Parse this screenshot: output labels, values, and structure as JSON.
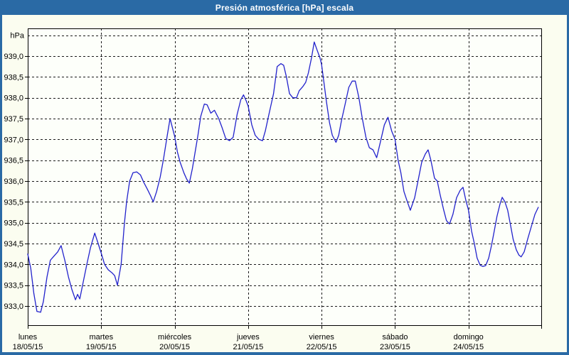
{
  "window": {
    "title": "Presión atmosférica [hPa] escala"
  },
  "colors": {
    "frame": "#2a6aa5",
    "title_text": "#ffffff",
    "content_bg": "#fbfdf0",
    "plot_bg": "#fdfffa",
    "grid": "#1a1a1a",
    "axis": "#000000",
    "label_text": "#000000",
    "line": "#2222cc"
  },
  "chart_data": {
    "type": "line",
    "title": "Presión atmosférica [hPa] escala",
    "y_axis_unit_label": "hPa",
    "ylim": [
      932.53,
      939.66
    ],
    "x_domain_hours": [
      0,
      168
    ],
    "grid": "dashed",
    "legend_visible": false,
    "y_ticks": [
      {
        "v": 939.0,
        "label": "939,0"
      },
      {
        "v": 938.5,
        "label": "938,5"
      },
      {
        "v": 938.0,
        "label": "938,0"
      },
      {
        "v": 937.5,
        "label": "937,5"
      },
      {
        "v": 937.0,
        "label": "937,0"
      },
      {
        "v": 936.5,
        "label": "936,5"
      },
      {
        "v": 936.0,
        "label": "936,0"
      },
      {
        "v": 935.5,
        "label": "935,5"
      },
      {
        "v": 935.0,
        "label": "935,0"
      },
      {
        "v": 934.5,
        "label": "934,5"
      },
      {
        "v": 934.0,
        "label": "934,0"
      },
      {
        "v": 933.5,
        "label": "933,5"
      },
      {
        "v": 933.0,
        "label": "933,0"
      }
    ],
    "y_gridlines": [
      933.0,
      933.5,
      934.0,
      934.5,
      935.0,
      935.5,
      936.0,
      936.5,
      937.0,
      937.5,
      938.0,
      938.5,
      939.0,
      939.5
    ],
    "x_day_ticks": [
      {
        "hour": 0,
        "name": "lunes",
        "date": "18/05/15"
      },
      {
        "hour": 24,
        "name": "martes",
        "date": "19/05/15"
      },
      {
        "hour": 48,
        "name": "miércoles",
        "date": "20/05/15"
      },
      {
        "hour": 72,
        "name": "jueves",
        "date": "21/05/15"
      },
      {
        "hour": 96,
        "name": "viernes",
        "date": "22/05/15"
      },
      {
        "hour": 120,
        "name": "sábado",
        "date": "23/05/15"
      },
      {
        "hour": 144,
        "name": "domingo",
        "date": "24/05/15"
      }
    ],
    "series": [
      {
        "name": "Presión atmosférica",
        "color": "#2222cc",
        "points": [
          [
            0,
            934.25
          ],
          [
            1,
            933.9
          ],
          [
            2,
            933.3
          ],
          [
            3,
            932.87
          ],
          [
            4.2,
            932.85
          ],
          [
            5.1,
            933.1
          ],
          [
            6.3,
            933.7
          ],
          [
            7.4,
            934.1
          ],
          [
            8.6,
            934.2
          ],
          [
            9.8,
            934.3
          ],
          [
            10.9,
            934.45
          ],
          [
            12.1,
            934.1
          ],
          [
            13.3,
            933.7
          ],
          [
            14.4,
            933.4
          ],
          [
            15.6,
            933.15
          ],
          [
            16.3,
            933.28
          ],
          [
            17,
            933.17
          ],
          [
            18.2,
            933.6
          ],
          [
            19.3,
            934.0
          ],
          [
            20.5,
            934.4
          ],
          [
            21.9,
            934.75
          ],
          [
            23,
            934.5
          ],
          [
            24,
            934.27
          ],
          [
            25.1,
            934.0
          ],
          [
            26.3,
            933.87
          ],
          [
            27.5,
            933.8
          ],
          [
            28.4,
            933.73
          ],
          [
            29.3,
            933.5
          ],
          [
            30.5,
            934.0
          ],
          [
            31.6,
            935.0
          ],
          [
            32.3,
            935.5
          ],
          [
            33.3,
            936.0
          ],
          [
            34.4,
            936.2
          ],
          [
            35.6,
            936.22
          ],
          [
            36.8,
            936.15
          ],
          [
            37.9,
            935.97
          ],
          [
            39.1,
            935.8
          ],
          [
            40.1,
            935.65
          ],
          [
            41,
            935.5
          ],
          [
            42.1,
            935.75
          ],
          [
            43.3,
            936.1
          ],
          [
            44.4,
            936.55
          ],
          [
            45.6,
            937.1
          ],
          [
            46.5,
            937.5
          ],
          [
            47.2,
            937.3
          ],
          [
            48,
            937.07
          ],
          [
            48.9,
            936.7
          ],
          [
            49.8,
            936.45
          ],
          [
            51,
            936.2
          ],
          [
            51.9,
            936.05
          ],
          [
            52.8,
            935.95
          ],
          [
            53.8,
            936.3
          ],
          [
            54.7,
            936.7
          ],
          [
            55.6,
            937.1
          ],
          [
            56.5,
            937.55
          ],
          [
            57.7,
            937.85
          ],
          [
            58.6,
            937.83
          ],
          [
            59.8,
            937.63
          ],
          [
            61,
            937.7
          ],
          [
            62.4,
            937.5
          ],
          [
            63.5,
            937.28
          ],
          [
            64.7,
            937.02
          ],
          [
            65.9,
            936.97
          ],
          [
            67.1,
            937.05
          ],
          [
            68.4,
            937.6
          ],
          [
            69.6,
            937.95
          ],
          [
            70.5,
            938.07
          ],
          [
            71.4,
            937.92
          ],
          [
            72,
            937.8
          ],
          [
            73.2,
            937.35
          ],
          [
            74.3,
            937.1
          ],
          [
            75.5,
            937.0
          ],
          [
            76.7,
            936.97
          ],
          [
            77.6,
            937.2
          ],
          [
            78.5,
            937.5
          ],
          [
            79.4,
            937.8
          ],
          [
            80.3,
            938.1
          ],
          [
            81.5,
            938.75
          ],
          [
            82.7,
            938.82
          ],
          [
            83.6,
            938.78
          ],
          [
            84.5,
            938.5
          ],
          [
            85.5,
            938.1
          ],
          [
            86.6,
            938.0
          ],
          [
            87.8,
            938.0
          ],
          [
            88.7,
            938.17
          ],
          [
            89.9,
            938.27
          ],
          [
            90.8,
            938.37
          ],
          [
            91.7,
            938.6
          ],
          [
            92.7,
            938.95
          ],
          [
            93.6,
            939.34
          ],
          [
            94.5,
            939.15
          ],
          [
            95.5,
            938.95
          ],
          [
            96,
            938.8
          ],
          [
            96.7,
            938.4
          ],
          [
            97.6,
            937.9
          ],
          [
            98.6,
            937.4
          ],
          [
            99.5,
            937.1
          ],
          [
            100.7,
            936.93
          ],
          [
            101.6,
            937.1
          ],
          [
            102.5,
            937.45
          ],
          [
            103.7,
            937.85
          ],
          [
            104.9,
            938.25
          ],
          [
            106,
            938.4
          ],
          [
            107,
            938.4
          ],
          [
            108.2,
            938.0
          ],
          [
            109.3,
            937.5
          ],
          [
            110.5,
            937.05
          ],
          [
            111.6,
            936.8
          ],
          [
            112.8,
            936.75
          ],
          [
            114,
            936.56
          ],
          [
            115.1,
            936.9
          ],
          [
            116.5,
            937.35
          ],
          [
            117.7,
            937.53
          ],
          [
            118.9,
            937.2
          ],
          [
            120,
            937.0
          ],
          [
            121,
            936.5
          ],
          [
            121.9,
            936.2
          ],
          [
            122.9,
            935.75
          ],
          [
            123.8,
            935.55
          ],
          [
            125,
            935.3
          ],
          [
            126.4,
            935.6
          ],
          [
            127.5,
            936.0
          ],
          [
            128.7,
            936.45
          ],
          [
            129.9,
            936.65
          ],
          [
            130.8,
            936.75
          ],
          [
            131.7,
            936.5
          ],
          [
            132.9,
            936.07
          ],
          [
            133.8,
            936.0
          ],
          [
            134.7,
            935.68
          ],
          [
            135.9,
            935.3
          ],
          [
            136.8,
            935.05
          ],
          [
            137.8,
            934.97
          ],
          [
            138.9,
            935.2
          ],
          [
            140.1,
            935.6
          ],
          [
            141.3,
            935.78
          ],
          [
            142.2,
            935.85
          ],
          [
            143.1,
            935.55
          ],
          [
            144,
            935.3
          ],
          [
            145,
            934.8
          ],
          [
            145.9,
            934.5
          ],
          [
            146.8,
            934.15
          ],
          [
            147.8,
            933.98
          ],
          [
            148.7,
            933.95
          ],
          [
            149.6,
            933.97
          ],
          [
            150.6,
            934.15
          ],
          [
            151.5,
            934.45
          ],
          [
            152.4,
            934.8
          ],
          [
            153.3,
            935.15
          ],
          [
            154.3,
            935.45
          ],
          [
            155,
            935.61
          ],
          [
            155.9,
            935.5
          ],
          [
            156.8,
            935.3
          ],
          [
            157.7,
            934.95
          ],
          [
            158.6,
            934.6
          ],
          [
            159.6,
            934.35
          ],
          [
            160.5,
            934.22
          ],
          [
            161.2,
            934.18
          ],
          [
            162.2,
            934.3
          ],
          [
            163.3,
            934.6
          ],
          [
            164.5,
            934.9
          ],
          [
            165.7,
            935.2
          ],
          [
            166.8,
            935.37
          ]
        ]
      }
    ]
  }
}
